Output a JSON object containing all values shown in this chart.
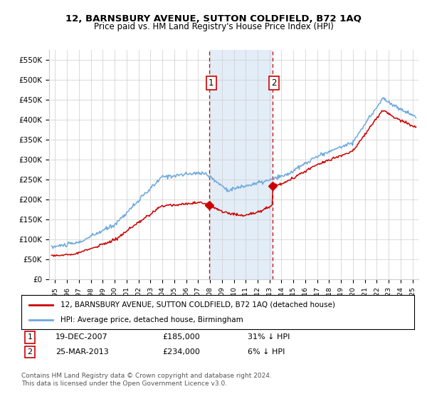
{
  "title": "12, BARNSBURY AVENUE, SUTTON COLDFIELD, B72 1AQ",
  "subtitle": "Price paid vs. HM Land Registry's House Price Index (HPI)",
  "ylabel_ticks": [
    "£0",
    "£50K",
    "£100K",
    "£150K",
    "£200K",
    "£250K",
    "£300K",
    "£350K",
    "£400K",
    "£450K",
    "£500K",
    "£550K"
  ],
  "ytick_values": [
    0,
    50000,
    100000,
    150000,
    200000,
    250000,
    300000,
    350000,
    400000,
    450000,
    500000,
    550000
  ],
  "ylim": [
    0,
    575000
  ],
  "xlim_start": 1994.5,
  "xlim_end": 2025.5,
  "xtick_years": [
    1995,
    1996,
    1997,
    1998,
    1999,
    2000,
    2001,
    2002,
    2003,
    2004,
    2005,
    2006,
    2007,
    2008,
    2009,
    2010,
    2011,
    2012,
    2013,
    2014,
    2015,
    2016,
    2017,
    2018,
    2019,
    2020,
    2021,
    2022,
    2023,
    2024,
    2025
  ],
  "hpi_color": "#6fa8dc",
  "price_color": "#cc0000",
  "purchase1_date": 2007.96,
  "purchase1_price": 185000,
  "purchase2_date": 2013.23,
  "purchase2_price": 234000,
  "shade_color": "#cfe2f3",
  "dashed_color": "#cc0000",
  "legend_line1": "12, BARNSBURY AVENUE, SUTTON COLDFIELD, B72 1AQ (detached house)",
  "legend_line2": "HPI: Average price, detached house, Birmingham",
  "table_row1_num": "1",
  "table_row1_date": "19-DEC-2007",
  "table_row1_price": "£185,000",
  "table_row1_hpi": "31% ↓ HPI",
  "table_row2_num": "2",
  "table_row2_date": "25-MAR-2013",
  "table_row2_price": "£234,000",
  "table_row2_hpi": "6% ↓ HPI",
  "footnote": "Contains HM Land Registry data © Crown copyright and database right 2024.\nThis data is licensed under the Open Government Licence v3.0.",
  "bg_color": "#ffffff",
  "grid_color": "#cccccc"
}
